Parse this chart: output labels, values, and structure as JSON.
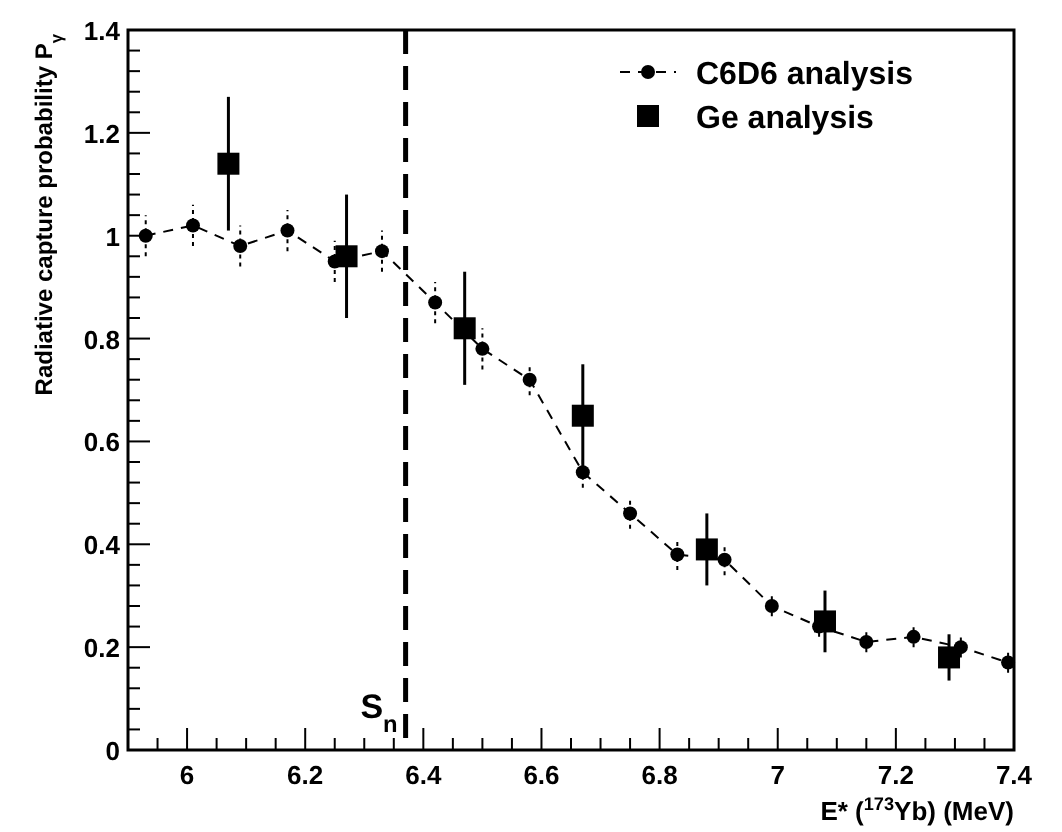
{
  "chart_data": {
    "type": "line",
    "xlabel": "E* ($^{173}$Yb) (MeV)",
    "ylabel": "Radiative capture probability P$_{γ}$",
    "xlim": [
      5.9,
      7.4
    ],
    "xticks": [
      6,
      6.2,
      6.4,
      6.6,
      6.8,
      7,
      7.2,
      7.4
    ],
    "ylim": [
      0,
      1.4
    ],
    "yticks": [
      0,
      0.2,
      0.4,
      0.6,
      0.8,
      1,
      1.2,
      1.4
    ],
    "grid": false,
    "legend": "top right",
    "ref_lines": [
      {
        "axis": "x",
        "value": 6.37,
        "label": "S$_{n}$",
        "line_style": "dashed",
        "color": "#000000"
      }
    ],
    "series": [
      {
        "name": "C6D6 analysis",
        "color": "#000000",
        "marker": "circle",
        "line_style": "dashed",
        "x": [
          5.93,
          6.01,
          6.09,
          6.17,
          6.25,
          6.33,
          6.42,
          6.5,
          6.58,
          6.67,
          6.75,
          6.83,
          6.91,
          6.99,
          7.07,
          7.15,
          7.23,
          7.31,
          7.39
        ],
        "values": [
          1.0,
          1.02,
          0.98,
          1.01,
          0.95,
          0.97,
          0.87,
          0.78,
          0.72,
          0.54,
          0.46,
          0.38,
          0.37,
          0.28,
          0.24,
          0.21,
          0.22,
          0.2,
          0.17
        ],
        "errors": [
          0.04,
          0.04,
          0.04,
          0.04,
          0.04,
          0.04,
          0.04,
          0.04,
          0.03,
          0.03,
          0.03,
          0.03,
          0.03,
          0.02,
          0.02,
          0.02,
          0.02,
          0.02,
          0.02
        ]
      },
      {
        "name": "Ge analysis",
        "type": "scatter",
        "color": "#000000",
        "marker": "square",
        "x": [
          6.07,
          6.27,
          6.47,
          6.67,
          6.88,
          7.08,
          7.29
        ],
        "values": [
          1.14,
          0.96,
          0.82,
          0.65,
          0.39,
          0.25,
          0.18
        ],
        "errors": [
          0.13,
          0.12,
          0.11,
          0.1,
          0.07,
          0.06,
          0.045
        ]
      }
    ]
  }
}
